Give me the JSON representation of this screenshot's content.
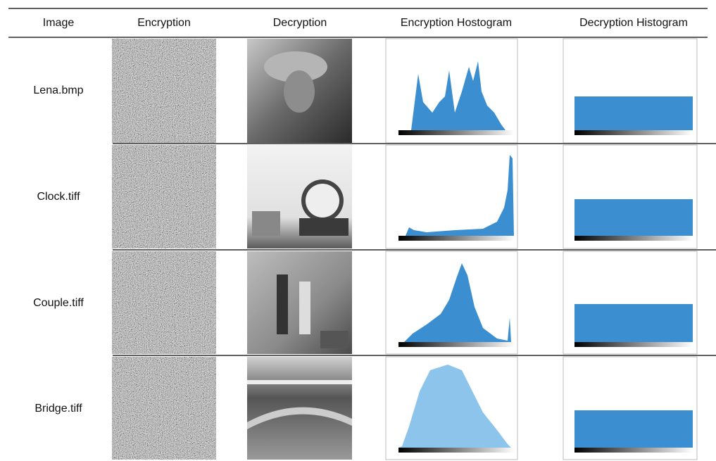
{
  "table": {
    "header": [
      "Image",
      "Encryption",
      "Decryption",
      "Encryption Hostogram",
      "Decryption Histogram"
    ],
    "rows": [
      "Lena.bmp",
      "Clock.tiff",
      "Couple.tiff",
      "Bridge.tiff"
    ]
  }
}
